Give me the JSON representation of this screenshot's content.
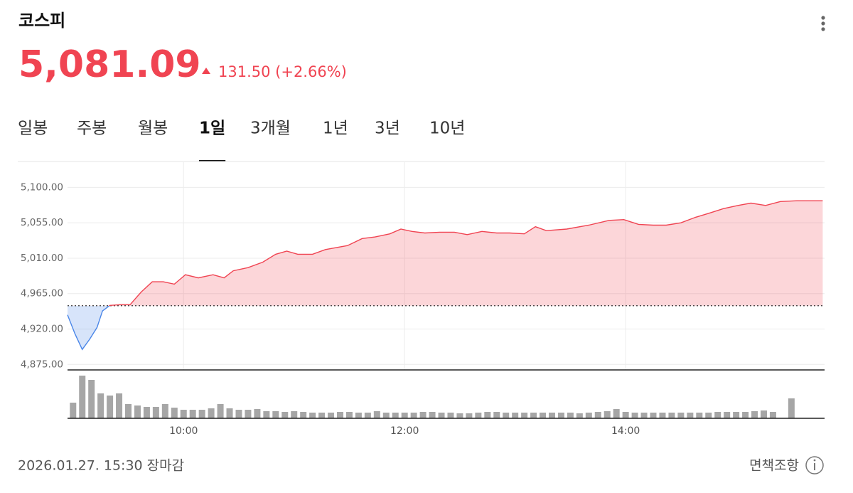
{
  "header": {
    "title": "코스피",
    "price": "5,081.09",
    "change": "131.50 (+2.66%)"
  },
  "tabs": [
    "일봉",
    "주봉",
    "월봉",
    "1일",
    "3개월",
    "1년",
    "3년",
    "10년"
  ],
  "active_tab": 3,
  "chart_data": {
    "type": "line",
    "x": [
      537,
      541,
      545,
      549,
      553,
      556,
      560,
      566,
      571,
      577,
      583,
      589,
      595,
      601,
      608,
      616,
      622,
      627,
      635,
      643,
      650,
      656,
      662,
      670,
      677,
      689,
      697,
      704,
      712,
      718,
      724,
      731,
      739,
      747,
      754,
      762,
      770,
      777,
      785,
      791,
      797,
      808,
      820,
      831,
      839,
      847,
      855,
      862,
      870,
      878,
      885,
      893,
      901,
      908,
      916,
      924,
      933,
      947
    ],
    "values": [
      4938,
      4914,
      4894,
      4907,
      4922,
      4943,
      4950,
      4951,
      4951,
      4967,
      4980,
      4980,
      4977,
      4989,
      4985,
      4989,
      4985,
      4994,
      4998,
      5005,
      5015,
      5019,
      5015,
      5015,
      5021,
      5026,
      5035,
      5037,
      5041,
      5047,
      5044,
      5042,
      5043,
      5043,
      5040,
      5044,
      5042,
      5042,
      5041,
      5050,
      5045,
      5047,
      5052,
      5058,
      5059,
      5053,
      5052,
      5052,
      5055,
      5062,
      5067,
      5073,
      5077,
      5080,
      5077,
      5082,
      5083,
      5083
    ],
    "color": "#f04452",
    "color_below": "#4a86e8",
    "previous_close": 4949.59,
    "xlim": [
      537,
      948
    ],
    "ylim": [
      4868,
      5132
    ],
    "xticks": [
      {
        "value": 600,
        "label": "10:00"
      },
      {
        "value": 720,
        "label": "12:00"
      },
      {
        "value": 840,
        "label": "14:00"
      }
    ],
    "yticks": [
      {
        "value": 4875,
        "label": "4,875.00"
      },
      {
        "value": 4920,
        "label": "4,920.00"
      },
      {
        "value": 4965,
        "label": "4,965.00"
      },
      {
        "value": 5010,
        "label": "5,010.00"
      },
      {
        "value": 5055,
        "label": "5,055.00"
      },
      {
        "value": 5100,
        "label": "5,100.00"
      }
    ],
    "grid": true,
    "volume": {
      "color": "#a6a6a6",
      "ylim": [
        0,
        66
      ],
      "x": [
        540,
        545,
        550,
        555,
        560,
        565,
        570,
        575,
        580,
        585,
        590,
        595,
        600,
        605,
        610,
        615,
        620,
        625,
        630,
        635,
        640,
        645,
        650,
        655,
        660,
        665,
        670,
        675,
        680,
        685,
        690,
        695,
        700,
        705,
        710,
        715,
        720,
        725,
        730,
        735,
        740,
        745,
        750,
        755,
        760,
        765,
        770,
        775,
        780,
        785,
        790,
        795,
        800,
        805,
        810,
        815,
        820,
        825,
        830,
        835,
        840,
        845,
        850,
        855,
        860,
        865,
        870,
        875,
        880,
        885,
        890,
        895,
        900,
        905,
        910,
        915,
        920,
        930
      ],
      "values": [
        22,
        60,
        54,
        35,
        32,
        35,
        20,
        18,
        16,
        16,
        20,
        15,
        12,
        12,
        12,
        14,
        20,
        14,
        12,
        12,
        13,
        10,
        10,
        9,
        10,
        9,
        8,
        8,
        8,
        9,
        9,
        8,
        8,
        10,
        8,
        8,
        8,
        8,
        9,
        9,
        8,
        8,
        7,
        7,
        8,
        9,
        9,
        8,
        8,
        8,
        8,
        8,
        8,
        8,
        8,
        7,
        8,
        9,
        10,
        13,
        9,
        8,
        8,
        8,
        8,
        8,
        8,
        8,
        8,
        8,
        9,
        9,
        9,
        9,
        10,
        11,
        9,
        28
      ]
    }
  },
  "footer": {
    "timestamp": "2026.01.27. 15:30 장마감",
    "disclaimer": "면책조항"
  }
}
